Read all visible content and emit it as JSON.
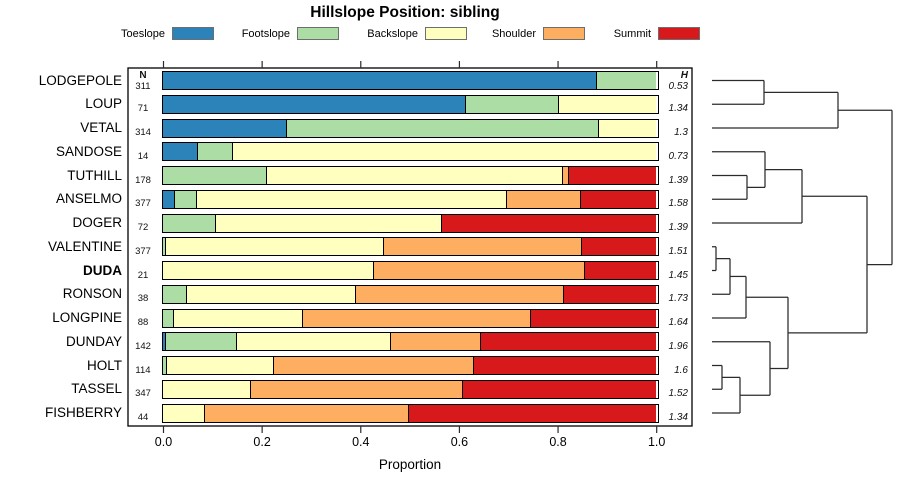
{
  "title": "Hillslope Position: sibling",
  "xlabel": "Proportion",
  "n_header": "N",
  "h_header": "H",
  "legend": [
    {
      "label": "Toeslope",
      "color": "#2B83BA"
    },
    {
      "label": "Footslope",
      "color": "#ABDDA4"
    },
    {
      "label": "Backslope",
      "color": "#FFFFBF"
    },
    {
      "label": "Shoulder",
      "color": "#FDAE61"
    },
    {
      "label": "Summit",
      "color": "#D7191C"
    }
  ],
  "chart_data": {
    "type": "bar",
    "subtype": "horizontal-stacked-proportions-with-dendrogram",
    "title": "Hillslope Position: sibling",
    "xlabel": "Proportion",
    "xlim": [
      0,
      1
    ],
    "x_tick_labels": [
      "0.0",
      "0.2",
      "0.4",
      "0.6",
      "0.8",
      "1.0"
    ],
    "categories": [
      "Toeslope",
      "Footslope",
      "Backslope",
      "Shoulder",
      "Summit"
    ],
    "series_colors": [
      "#2B83BA",
      "#ABDDA4",
      "#FFFFBF",
      "#FDAE61",
      "#D7191C"
    ],
    "rows": [
      {
        "name": "LODGEPOLE",
        "n": "311",
        "shannon_h": "0.53",
        "bold": false,
        "proportions": [
          0.881,
          0.119,
          0,
          0,
          0
        ]
      },
      {
        "name": "LOUP",
        "n": "71",
        "shannon_h": "1.34",
        "bold": false,
        "proportions": [
          0.615,
          0.188,
          0.197,
          0,
          0
        ]
      },
      {
        "name": "VETAL",
        "n": "314",
        "shannon_h": "1.3",
        "bold": false,
        "proportions": [
          0.2525,
          0.6325,
          0.115,
          0,
          0
        ]
      },
      {
        "name": "SANDOSE",
        "n": "14",
        "shannon_h": "0.73",
        "bold": false,
        "proportions": [
          0.0714,
          0.0714,
          0.8572,
          0,
          0
        ]
      },
      {
        "name": "TUTHILL",
        "n": "178",
        "shannon_h": "1.39",
        "bold": false,
        "proportions": [
          0,
          0.2125,
          0.5995,
          0.012,
          0.176
        ]
      },
      {
        "name": "ANSELMO",
        "n": "377",
        "shannon_h": "1.58",
        "bold": false,
        "proportions": [
          0.0248,
          0.0446,
          0.6299,
          0.1487,
          0.152
        ]
      },
      {
        "name": "DOGER",
        "n": "72",
        "shannon_h": "1.39",
        "bold": false,
        "proportions": [
          0,
          0.108,
          0.459,
          0,
          0.433
        ]
      },
      {
        "name": "VALENTINE",
        "n": "377",
        "shannon_h": "1.51",
        "bold": false,
        "proportions": [
          0,
          0.008,
          0.441,
          0.402,
          0.149
        ]
      },
      {
        "name": "DUDA",
        "n": "21",
        "shannon_h": "1.45",
        "bold": true,
        "proportions": [
          0,
          0,
          0.4286,
          0.4286,
          0.1428
        ]
      },
      {
        "name": "RONSON",
        "n": "38",
        "shannon_h": "1.73",
        "bold": false,
        "proportions": [
          0,
          0.0503,
          0.3427,
          0.421,
          0.186
        ]
      },
      {
        "name": "LONGPINE",
        "n": "88",
        "shannon_h": "1.64",
        "bold": false,
        "proportions": [
          0,
          0.023,
          0.261,
          0.463,
          0.253
        ]
      },
      {
        "name": "DUNDAY",
        "n": "142",
        "shannon_h": "1.96",
        "bold": false,
        "proportions": [
          0.008,
          0.1437,
          0.3111,
          0.1825,
          0.3547
        ]
      },
      {
        "name": "HOLT",
        "n": "114",
        "shannon_h": "1.6",
        "bold": false,
        "proportions": [
          0,
          0.009,
          0.2171,
          0.4056,
          0.3683
        ]
      },
      {
        "name": "TASSEL",
        "n": "347",
        "shannon_h": "1.52",
        "bold": false,
        "proportions": [
          0,
          0,
          0.1789,
          0.4311,
          0.39
        ]
      },
      {
        "name": "FISHBERRY",
        "n": "44",
        "shannon_h": "1.34",
        "bold": false,
        "proportions": [
          0,
          0,
          0.0856,
          0.4144,
          0.5
        ]
      }
    ],
    "dendrogram": {
      "leaf_start_x": 712,
      "merges": [
        {
          "id": "M1",
          "a": "L0",
          "b": "L1",
          "x": 764
        },
        {
          "id": "M2",
          "a": "M1",
          "b": "L2",
          "x": 838
        },
        {
          "id": "M3",
          "a": "L4",
          "b": "L5",
          "x": 747
        },
        {
          "id": "M4",
          "a": "L3",
          "b": "M3",
          "x": 765
        },
        {
          "id": "M5",
          "a": "M4",
          "b": "L6",
          "x": 802
        },
        {
          "id": "M6",
          "a": "L7",
          "b": "L8",
          "x": 716
        },
        {
          "id": "M7",
          "a": "M6",
          "b": "L9",
          "x": 730
        },
        {
          "id": "M8",
          "a": "M7",
          "b": "L10",
          "x": 746
        },
        {
          "id": "M9",
          "a": "L12",
          "b": "L13",
          "x": 722
        },
        {
          "id": "M10",
          "a": "M9",
          "b": "L14",
          "x": 740
        },
        {
          "id": "M11",
          "a": "L11",
          "b": "M10",
          "x": 770
        },
        {
          "id": "M12",
          "a": "M8",
          "b": "M11",
          "x": 788
        },
        {
          "id": "M13",
          "a": "M5",
          "b": "M12",
          "x": 867
        },
        {
          "id": "M14",
          "a": "M2",
          "b": "M13",
          "x": 892
        }
      ]
    }
  }
}
